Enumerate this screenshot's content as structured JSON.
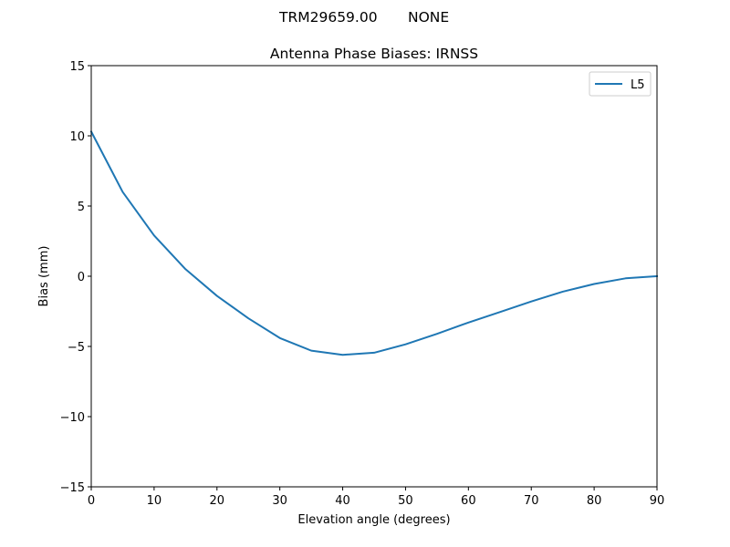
{
  "chart_data": {
    "type": "line",
    "suptitle_left": "TRM29659.00",
    "suptitle_right": "NONE",
    "title": "Antenna Phase Biases: IRNSS",
    "xlabel": "Elevation angle (degrees)",
    "ylabel": "Bias (mm)",
    "xlim": [
      0,
      90
    ],
    "ylim": [
      -15,
      15
    ],
    "xticks": [
      0,
      10,
      20,
      30,
      40,
      50,
      60,
      70,
      80,
      90
    ],
    "yticks": [
      -15,
      -10,
      -5,
      0,
      5,
      10,
      15
    ],
    "ytick_labels": [
      "−15",
      "−10",
      "−5",
      "0",
      "5",
      "10",
      "15"
    ],
    "grid": false,
    "legend": "top-right",
    "series": [
      {
        "name": "L5",
        "color": "#1f77b4",
        "x": [
          0,
          5,
          10,
          15,
          20,
          25,
          30,
          35,
          40,
          45,
          50,
          55,
          60,
          65,
          70,
          75,
          80,
          85,
          90
        ],
        "y": [
          10.3,
          6.0,
          2.9,
          0.5,
          -1.4,
          -3.0,
          -4.4,
          -5.3,
          -5.6,
          -5.45,
          -4.85,
          -4.1,
          -3.3,
          -2.55,
          -1.8,
          -1.1,
          -0.55,
          -0.15,
          0.0
        ]
      }
    ]
  }
}
